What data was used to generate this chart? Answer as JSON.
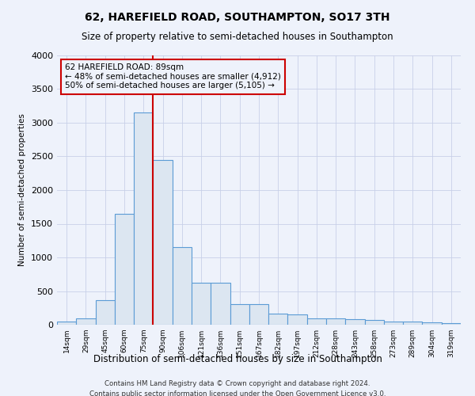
{
  "title": "62, HAREFIELD ROAD, SOUTHAMPTON, SO17 3TH",
  "subtitle": "Size of property relative to semi-detached houses in Southampton",
  "xlabel": "Distribution of semi-detached houses by size in Southampton",
  "ylabel": "Number of semi-detached properties",
  "footer1": "Contains HM Land Registry data © Crown copyright and database right 2024.",
  "footer2": "Contains public sector information licensed under the Open Government Licence v3.0.",
  "annotation_title": "62 HAREFIELD ROAD: 89sqm",
  "annotation_line1": "← 48% of semi-detached houses are smaller (4,912)",
  "annotation_line2": "50% of semi-detached houses are larger (5,105) →",
  "bar_edge_color": "#5b9bd5",
  "bar_fill_color": "#dce6f1",
  "vline_color": "#cc0000",
  "annotation_box_color": "#cc0000",
  "bg_color": "#eef2fb",
  "grid_color": "#c8d0e8",
  "categories": [
    "14sqm",
    "29sqm",
    "45sqm",
    "60sqm",
    "75sqm",
    "90sqm",
    "106sqm",
    "121sqm",
    "136sqm",
    "151sqm",
    "167sqm",
    "182sqm",
    "197sqm",
    "212sqm",
    "228sqm",
    "243sqm",
    "258sqm",
    "273sqm",
    "289sqm",
    "304sqm",
    "319sqm"
  ],
  "values": [
    50,
    100,
    370,
    1650,
    3150,
    2450,
    1150,
    620,
    620,
    310,
    310,
    170,
    150,
    100,
    100,
    80,
    70,
    50,
    50,
    30,
    20
  ],
  "ylim": [
    0,
    4000
  ],
  "yticks": [
    0,
    500,
    1000,
    1500,
    2000,
    2500,
    3000,
    3500,
    4000
  ],
  "vline_index": 4.5
}
